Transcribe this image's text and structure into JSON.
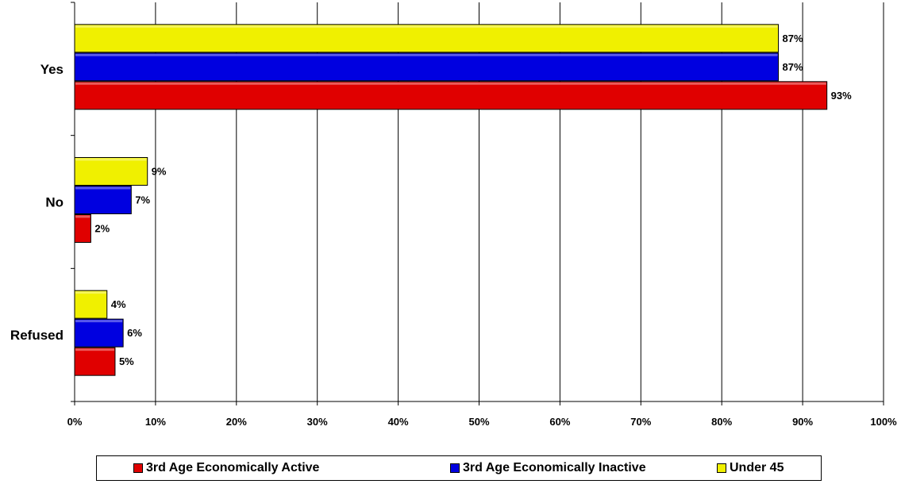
{
  "chart_data": {
    "type": "bar",
    "orientation": "horizontal",
    "categories": [
      "Yes",
      "No",
      "Refused"
    ],
    "series": [
      {
        "name": "3rd Age Economically Active",
        "color": "#e00000",
        "values": [
          93,
          2,
          5
        ],
        "labels": [
          "93%",
          "2%",
          "5%"
        ]
      },
      {
        "name": "3rd Age Economically Inactive",
        "color": "#0000e0",
        "values": [
          87,
          7,
          6
        ],
        "labels": [
          "87%",
          "7%",
          "6%"
        ]
      },
      {
        "name": "Under 45",
        "color": "#f0f000",
        "values": [
          87,
          9,
          4
        ],
        "labels": [
          "87%",
          "9%",
          "4%"
        ]
      }
    ],
    "x_ticks": [
      "0%",
      "10%",
      "20%",
      "30%",
      "40%",
      "50%",
      "60%",
      "70%",
      "80%",
      "90%",
      "100%"
    ],
    "xlim": [
      0,
      100
    ],
    "grid": true,
    "legend_position": "bottom"
  }
}
